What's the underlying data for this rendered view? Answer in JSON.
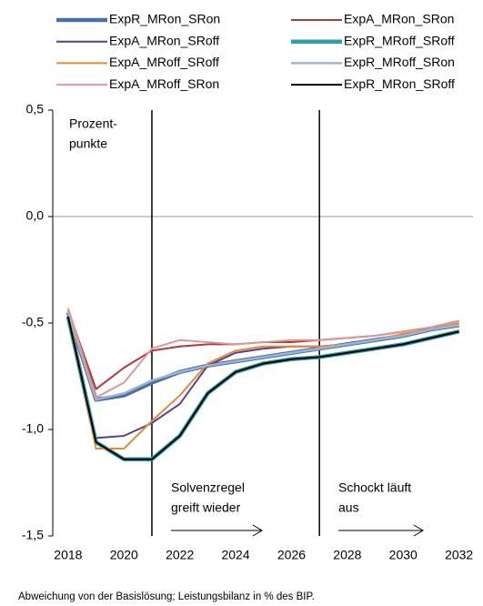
{
  "chart_data": {
    "type": "line",
    "x": [
      2018,
      2019,
      2020,
      2021,
      2022,
      2023,
      2024,
      2025,
      2026,
      2027,
      2028,
      2029,
      2030,
      2031,
      2032
    ],
    "series": [
      {
        "name": "ExpR_MRon_SRon",
        "color": "#4a6fa5",
        "line_width": 4.5,
        "values": [
          -0.45,
          -0.86,
          -0.84,
          -0.78,
          -0.73,
          -0.7,
          -0.68,
          -0.66,
          -0.64,
          -0.62,
          -0.6,
          -0.58,
          -0.56,
          -0.53,
          -0.51
        ]
      },
      {
        "name": "ExpA_MRon_SRon",
        "color": "#b03a3a",
        "line_width": 2,
        "values": [
          -0.44,
          -0.81,
          -0.71,
          -0.63,
          -0.61,
          -0.6,
          -0.6,
          -0.59,
          -0.59,
          -0.58,
          -0.57,
          -0.56,
          -0.54,
          -0.52,
          -0.49
        ]
      },
      {
        "name": "ExpA_MRon_SRoff",
        "color": "#5b3f8c",
        "line_width": 2,
        "values": [
          -0.45,
          -1.04,
          -1.03,
          -0.97,
          -0.88,
          -0.7,
          -0.64,
          -0.62,
          -0.61,
          -0.61,
          -0.6,
          -0.58,
          -0.56,
          -0.53,
          -0.51
        ]
      },
      {
        "name": "ExpR_MRoff_SRoff",
        "color": "#2aa0b0",
        "line_width": 4.5,
        "values": [
          -0.47,
          -1.06,
          -1.14,
          -1.14,
          -1.03,
          -0.83,
          -0.73,
          -0.69,
          -0.67,
          -0.66,
          -0.64,
          -0.62,
          -0.6,
          -0.57,
          -0.54
        ]
      },
      {
        "name": "ExpA_MRoff_SRoff",
        "color": "#e08a3c",
        "line_width": 2,
        "values": [
          -0.44,
          -1.09,
          -1.09,
          -0.96,
          -0.84,
          -0.69,
          -0.63,
          -0.61,
          -0.61,
          -0.61,
          -0.6,
          -0.58,
          -0.55,
          -0.53,
          -0.5
        ]
      },
      {
        "name": "ExpR_MRoff_SRon",
        "color": "#9bb5d6",
        "line_width": 2.5,
        "values": [
          -0.45,
          -0.86,
          -0.83,
          -0.77,
          -0.73,
          -0.7,
          -0.68,
          -0.66,
          -0.64,
          -0.62,
          -0.6,
          -0.58,
          -0.56,
          -0.53,
          -0.51
        ]
      },
      {
        "name": "ExpA_MRoff_SRon",
        "color": "#d9999a",
        "line_width": 2,
        "values": [
          -0.43,
          -0.85,
          -0.78,
          -0.62,
          -0.58,
          -0.59,
          -0.6,
          -0.59,
          -0.58,
          -0.58,
          -0.57,
          -0.56,
          -0.54,
          -0.52,
          -0.49
        ]
      },
      {
        "name": "ExpR_MRon_SRoff",
        "color": "#000000",
        "line_width": 2,
        "values": [
          -0.47,
          -1.06,
          -1.14,
          -1.14,
          -1.03,
          -0.83,
          -0.73,
          -0.69,
          -0.67,
          -0.66,
          -0.64,
          -0.62,
          -0.6,
          -0.57,
          -0.54
        ]
      }
    ],
    "xlim": [
      2017.45,
      2032.5
    ],
    "xticks": [
      2018,
      2020,
      2022,
      2024,
      2026,
      2028,
      2030,
      2032
    ],
    "ylim": [
      -1.5,
      0.5
    ],
    "yticks": [
      {
        "value": -1.5,
        "label": "-1,5"
      },
      {
        "value": -1.0,
        "label": "-1,0"
      },
      {
        "value": -0.5,
        "label": "-0,5"
      },
      {
        "value": 0.0,
        "label": "0,0"
      },
      {
        "value": 0.5,
        "label": "0,5"
      }
    ],
    "vlines": [
      2021,
      2027
    ],
    "unit_label": [
      "Prozent-",
      "punkte"
    ],
    "annotations": [
      [
        "Solvenzregel",
        "greift wieder"
      ],
      [
        "Schockt läuft",
        "aus"
      ]
    ],
    "footnote": "Abweichung von der Basislösung; Leistungsbilanz in % des BIP."
  }
}
